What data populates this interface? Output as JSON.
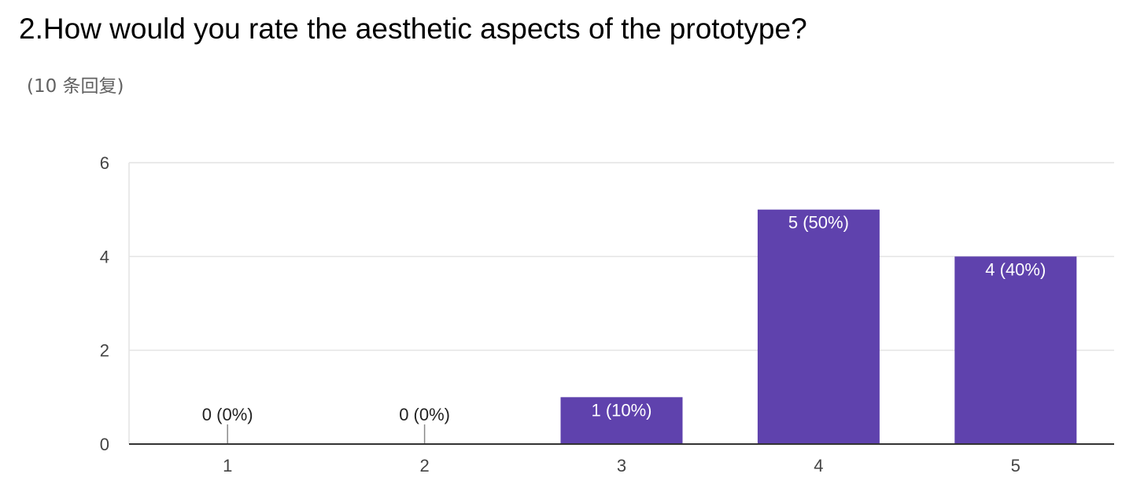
{
  "question": {
    "title": "2.How would you rate the aesthetic aspects of the prototype?",
    "responses": "(10 条回复)"
  },
  "colors": {
    "bar": "#5f42ad",
    "label_inside": "#ffffff",
    "label_outside": "#222222",
    "grid": "#e4e4e4",
    "axis": "#333333"
  },
  "chart_data": {
    "type": "bar",
    "categories": [
      "1",
      "2",
      "3",
      "4",
      "5"
    ],
    "values": [
      0,
      0,
      1,
      5,
      4
    ],
    "data_labels": [
      "0 (0%)",
      "0 (0%)",
      "1 (10%)",
      "5 (50%)",
      "4 (40%)"
    ],
    "yticks": [
      "0",
      "2",
      "4",
      "6"
    ],
    "ylim": [
      0,
      6
    ],
    "grid": true,
    "title": "2.How would you rate the aesthetic aspects of the prototype?",
    "xlabel": "",
    "ylabel": ""
  }
}
